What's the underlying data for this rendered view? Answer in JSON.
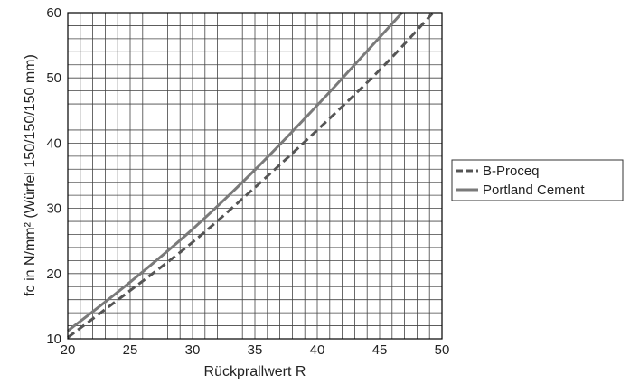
{
  "chart_data": {
    "type": "line",
    "xlabel": "Rückprallwert R",
    "ylabel": "fc in N/mm² (Würfel 150/150/150 mm)",
    "xlim": [
      20,
      50
    ],
    "ylim": [
      10,
      60
    ],
    "x_ticks": [
      "20",
      "25",
      "30",
      "35",
      "40",
      "45",
      "50"
    ],
    "y_ticks": [
      "10",
      "20",
      "30",
      "40",
      "50",
      "60"
    ],
    "grid": true,
    "legend": "right",
    "series": [
      {
        "name": "B-Proceq",
        "style": "dashed",
        "color": "#555555",
        "x": [
          20,
          25,
          30,
          35,
          40,
          45,
          49.3
        ],
        "y": [
          10.2,
          17.4,
          24.8,
          33.2,
          42.0,
          51.2,
          60.0
        ]
      },
      {
        "name": "Portland Cement",
        "style": "solid",
        "color": "#7a7a7a",
        "x": [
          20,
          25,
          30,
          35,
          40,
          45,
          46.8
        ],
        "y": [
          11.2,
          18.7,
          26.8,
          35.9,
          45.8,
          56.2,
          60.0
        ]
      }
    ]
  }
}
